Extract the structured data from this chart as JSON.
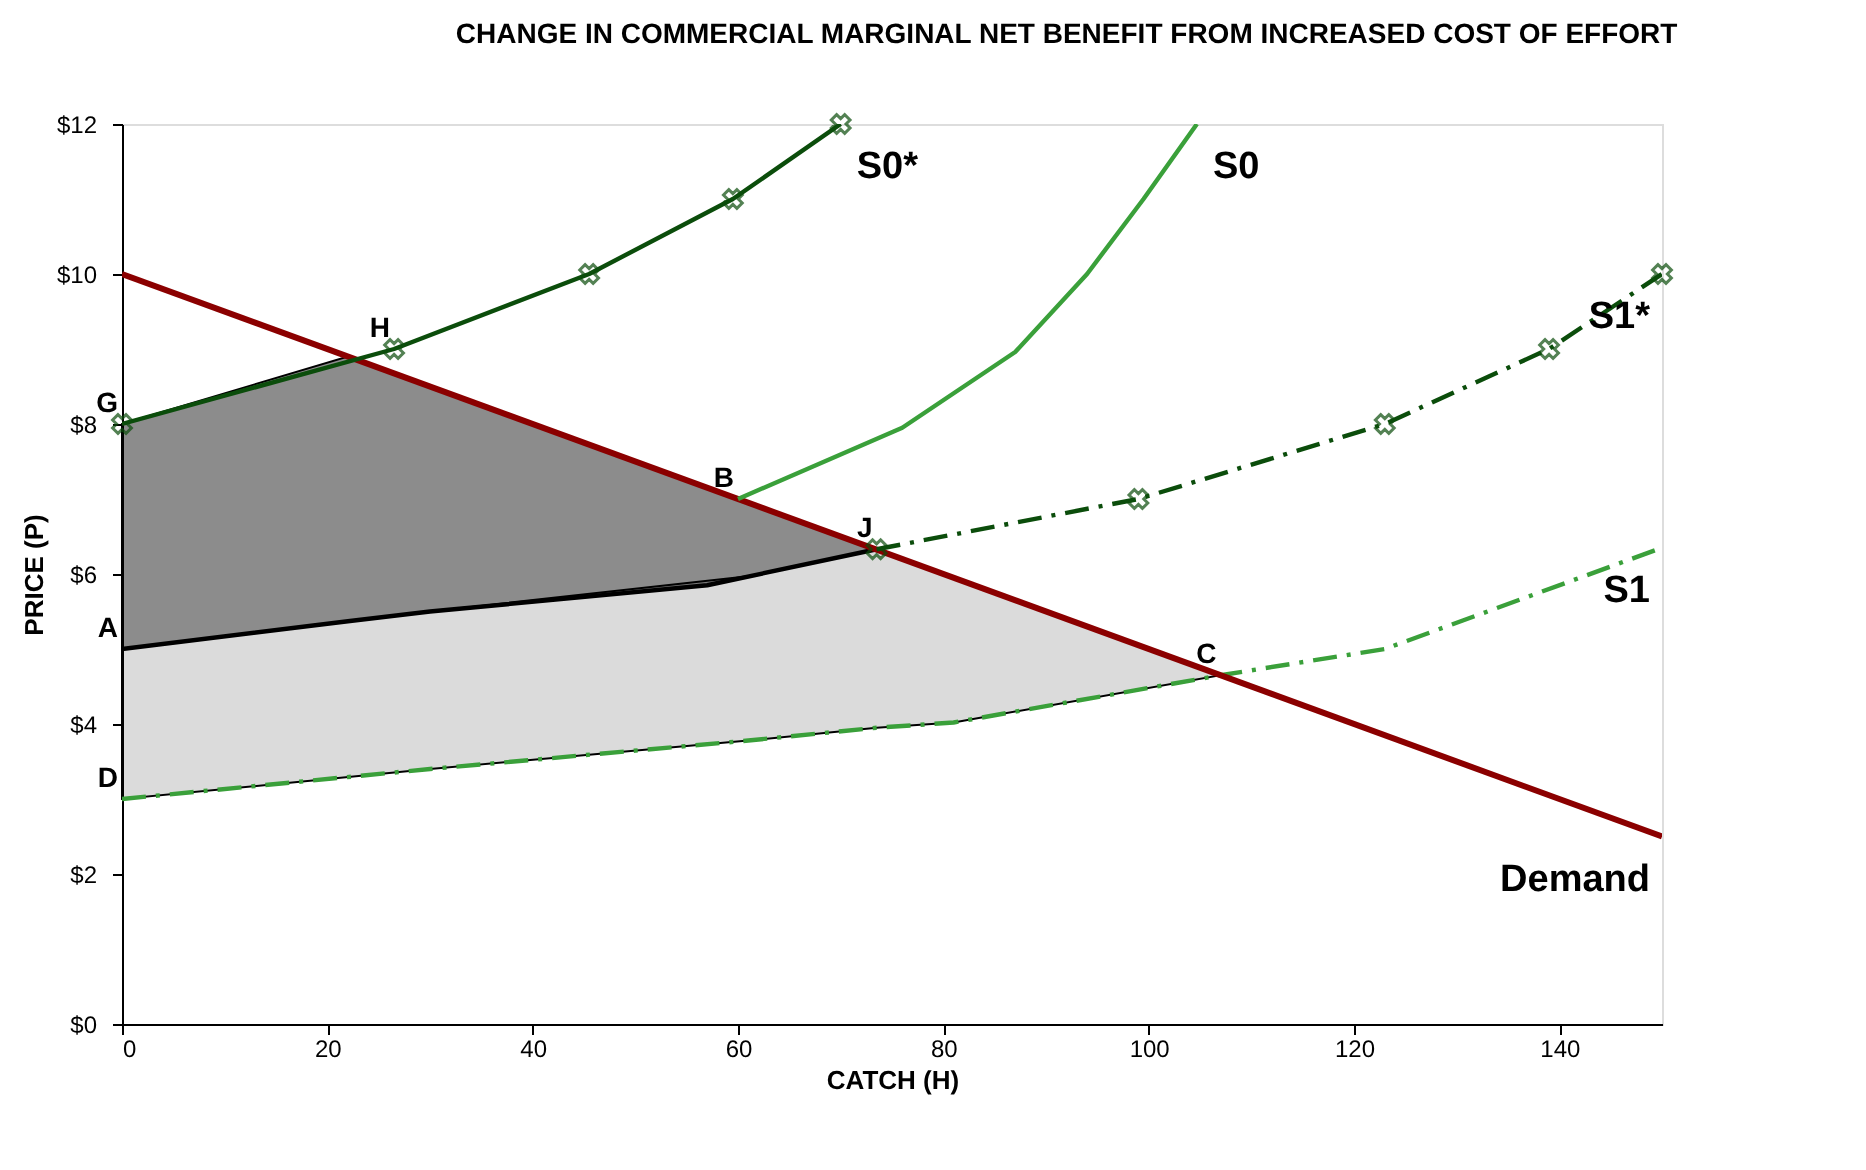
{
  "chart_data": {
    "type": "line",
    "title": "CHANGE IN COMMERCIAL MARGINAL NET BENEFIT FROM INCREASED COST OF EFFORT",
    "xlabel": "CATCH (H)",
    "ylabel": "PRICE (P)",
    "xlim": [
      0,
      150
    ],
    "xticks": [
      0,
      20,
      40,
      60,
      80,
      100,
      120,
      140
    ],
    "ylim": [
      0,
      12
    ],
    "yticks": [
      {
        "value": 0,
        "label": "$0"
      },
      {
        "value": 2,
        "label": "$2"
      },
      {
        "value": 4,
        "label": "$4"
      },
      {
        "value": 6,
        "label": "$6"
      },
      {
        "value": 8,
        "label": "$8"
      },
      {
        "value": 10,
        "label": "$10"
      },
      {
        "value": 12,
        "label": "$12"
      }
    ],
    "grid": false,
    "legend": false,
    "series": [
      {
        "color": "#000000",
        "x": [
          0,
          22,
          30,
          57,
          73.5
        ],
        "values": [
          5,
          5.37,
          5.5,
          5.85,
          6.33
        ],
        "lower": [
          5,
          5.37,
          5.5,
          5.85,
          6.33
        ],
        "upper": [
          8,
          8.9,
          8.5,
          7.15,
          6.33
        ],
        "marker": "none",
        "line_style": "solid"
      },
      {
        "name": "S1",
        "color": "#3aa03a",
        "x": [
          0,
          30,
          61,
          73.5,
          81,
          107,
          123,
          150
        ],
        "values": [
          3,
          3.4,
          3.78,
          3.95,
          4.02,
          4.65,
          5,
          6.35
        ],
        "lower": [
          3,
          3.4,
          3.78,
          3.95,
          4.02,
          4.65,
          null,
          null
        ],
        "upper": [
          5,
          5.5,
          5.97,
          6.33,
          5.95,
          4.65,
          null,
          null
        ],
        "marker": "none",
        "line_style": "dashed"
      },
      {
        "name": "Demand",
        "color": "#8b0000",
        "x": [
          0,
          150
        ],
        "values": [
          10,
          2.5
        ],
        "marker": "none",
        "line_style": "solid"
      },
      {
        "name": "S0*",
        "color": "#0b4d0b",
        "x": [
          0,
          26.5,
          45.5,
          59.5,
          70
        ],
        "values": [
          8,
          9,
          10,
          11,
          12
        ],
        "marker": "cross",
        "line_style": "solid"
      },
      {
        "name": "S0",
        "color": "#3aa03a",
        "x": [
          60,
          76,
          87,
          94,
          99.5,
          104.7
        ],
        "values": [
          7,
          7.95,
          8.96,
          10,
          11,
          12
        ],
        "marker": "none",
        "line_style": "solid"
      },
      {
        "name": "S1*",
        "color": "#0b4d0b",
        "x": [
          73.5,
          99,
          123,
          139,
          150
        ],
        "values": [
          6.33,
          7,
          8,
          9,
          10
        ],
        "marker": "cross",
        "line_style": "dashed"
      }
    ],
    "annotations": [
      {
        "text": "G",
        "x": 0,
        "y": 8
      },
      {
        "text": "H",
        "x": 26.5,
        "y": 9
      },
      {
        "text": "B",
        "x": 60,
        "y": 7
      },
      {
        "text": "J",
        "x": 73.5,
        "y": 6.33
      },
      {
        "text": "A",
        "x": 0,
        "y": 5
      },
      {
        "text": "C",
        "x": 107,
        "y": 4.65
      },
      {
        "text": "D",
        "x": 0,
        "y": 3
      }
    ]
  }
}
